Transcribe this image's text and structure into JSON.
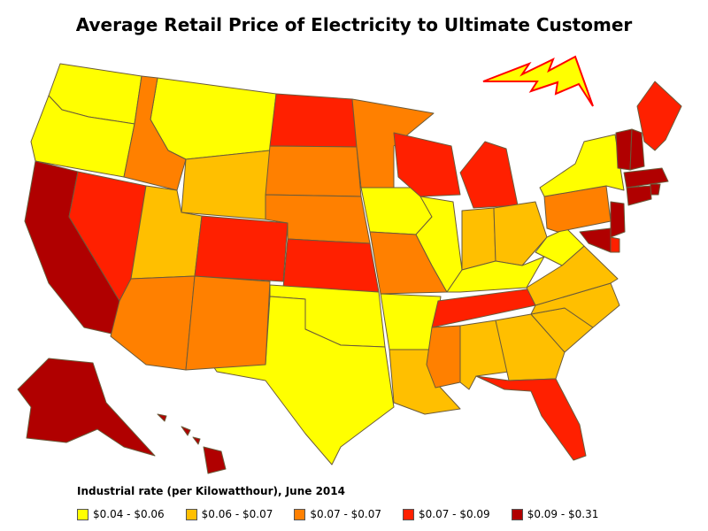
{
  "title": "Average Retail Price of Electricity to Ultimate Customer",
  "legend": {
    "title": "Industrial rate (per Kilowatthour), June 2014",
    "items": [
      {
        "label": "$0.04 - $0.06",
        "color": "#ffff00"
      },
      {
        "label": "$0.06 - $0.07",
        "color": "#ffbf00"
      },
      {
        "label": "$0.07 - $0.07",
        "color": "#ff8000"
      },
      {
        "label": "$0.07 - $0.09",
        "color": "#ff2000"
      },
      {
        "label": "$0.09 - $0.31",
        "color": "#b00000"
      }
    ]
  },
  "chart_data": {
    "type": "choropleth",
    "title": "Average Retail Price of Electricity to Ultimate Customer",
    "subtitle": "Industrial rate (per Kilowatthour), June 2014",
    "bins": [
      "$0.04 - $0.06",
      "$0.06 - $0.07",
      "$0.07 - $0.07",
      "$0.07 - $0.09",
      "$0.09 - $0.31"
    ],
    "states": {
      "WA": 0,
      "OR": 0,
      "MT": 0,
      "ID": 2,
      "WY": 1,
      "ND": 3,
      "SD": 2,
      "NE": 2,
      "KS": 3,
      "OK": 0,
      "TX": 0,
      "MN": 2,
      "IA": 0,
      "MO": 2,
      "AR": 0,
      "LA": 1,
      "WI": 3,
      "IL": 0,
      "MI": 3,
      "IN": 1,
      "OH": 1,
      "KY": 0,
      "TN": 3,
      "MS": 2,
      "AL": 1,
      "GA": 1,
      "FL": 3,
      "SC": 1,
      "NC": 1,
      "VA": 1,
      "WV": 0,
      "PA": 2,
      "NY": 0,
      "ME": 3,
      "VT": 4,
      "NH": 4,
      "MA": 4,
      "RI": 4,
      "CT": 4,
      "NJ": 4,
      "DE": 3,
      "MD": 4,
      "CA": 4,
      "NV": 3,
      "UT": 1,
      "AZ": 2,
      "CO": 3,
      "NM": 2,
      "AK": 4,
      "HI": 4
    }
  }
}
